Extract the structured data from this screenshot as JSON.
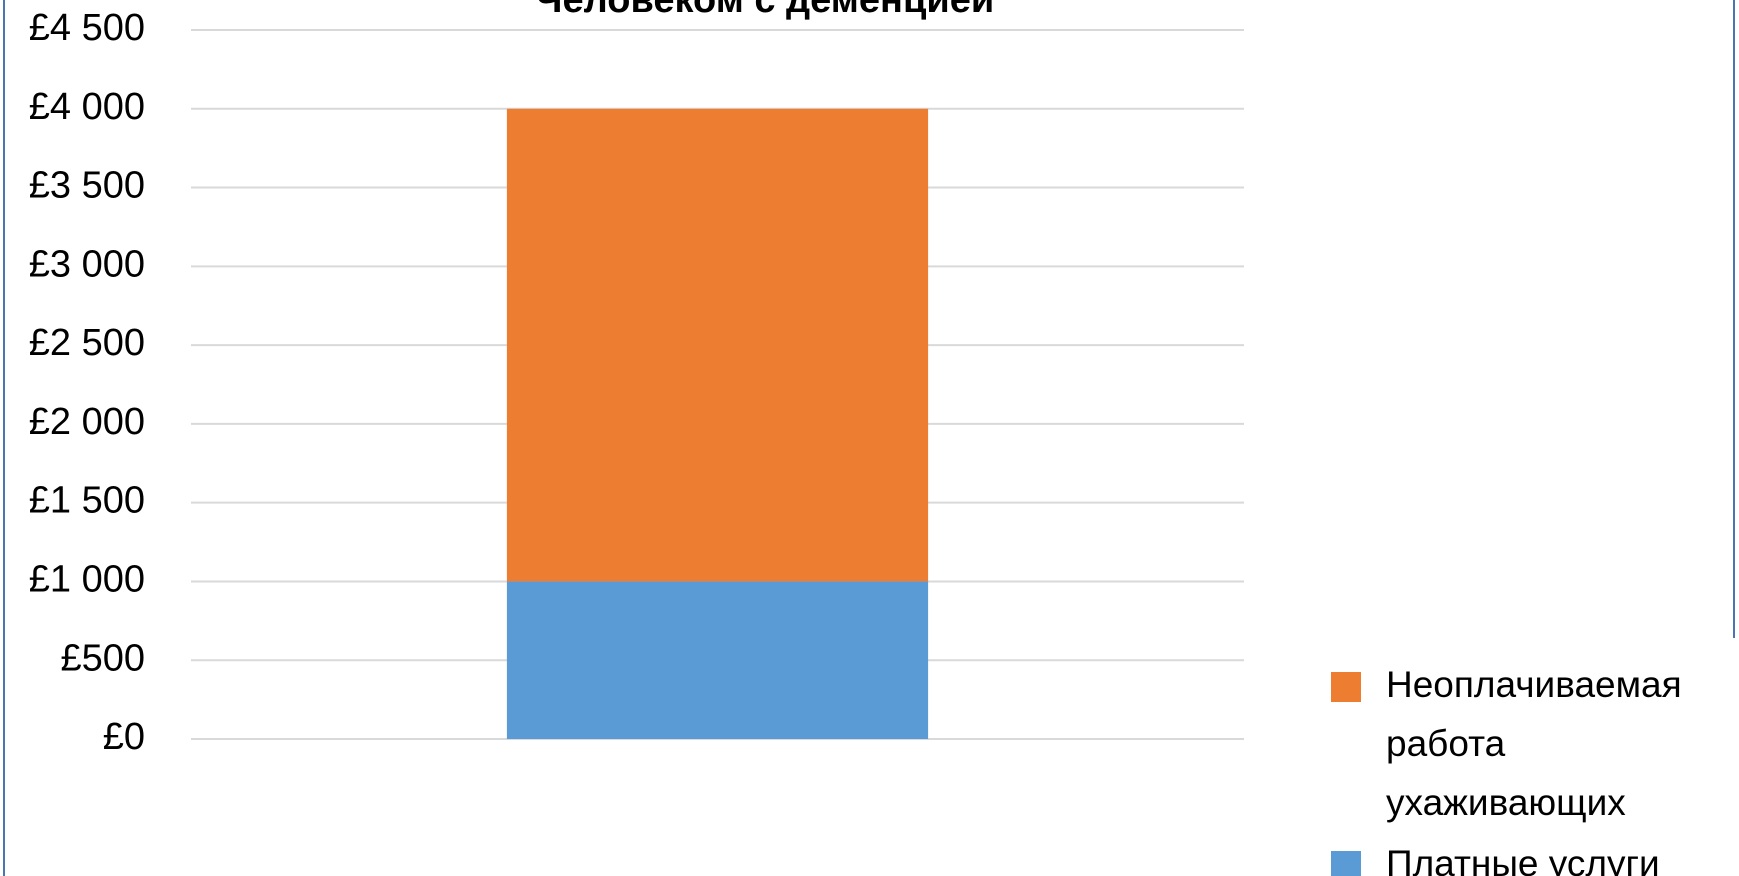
{
  "chart_data": {
    "type": "stacked_bar",
    "title": "Человеком с деменцией",
    "categories": [
      null
    ],
    "series": [
      {
        "name": "Платные услуги",
        "color": "#5b9bd5",
        "values": [
          1000
        ]
      },
      {
        "name": "Неоплачиваемая работа ухаживающих",
        "color": "#ed7d31",
        "values": [
          3000
        ]
      }
    ],
    "ylim": [
      0,
      4500
    ],
    "yticks": [
      {
        "value": 0,
        "label": "£0"
      },
      {
        "value": 500,
        "label": "£500"
      },
      {
        "value": 1000,
        "label": "£1 000"
      },
      {
        "value": 1500,
        "label": "£1 500"
      },
      {
        "value": 2000,
        "label": "£2 000"
      },
      {
        "value": 2500,
        "label": "£2 500"
      },
      {
        "value": 3000,
        "label": "£3 000"
      },
      {
        "value": 3500,
        "label": "£3 500"
      },
      {
        "value": 4000,
        "label": "£4 000"
      },
      {
        "value": 4500,
        "label": "£4 500"
      }
    ],
    "grid": true,
    "legend": "right"
  }
}
